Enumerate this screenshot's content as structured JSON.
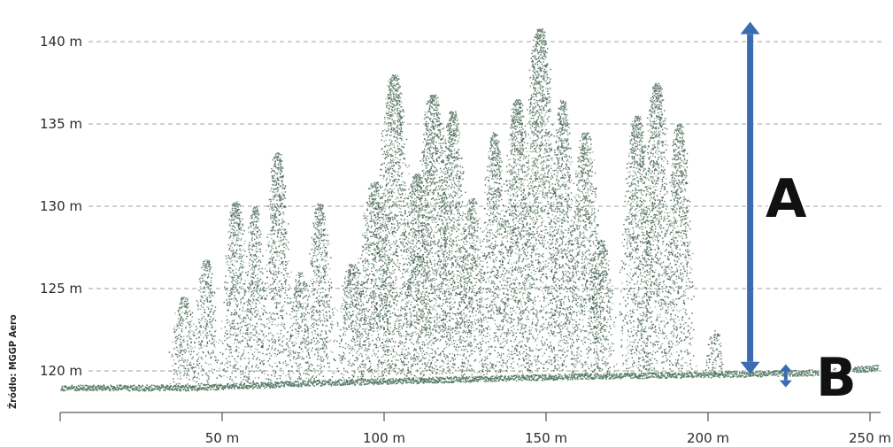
{
  "chart_data": {
    "type": "scatter",
    "title": "",
    "xlabel": "",
    "ylabel": "",
    "xlim": [
      0,
      252
    ],
    "ylim": [
      116,
      142
    ],
    "x_ticks": [
      0,
      50,
      100,
      150,
      200,
      250
    ],
    "x_tick_labels": [
      "",
      "50 m",
      "100 m",
      "150 m",
      "200 m",
      "250 m"
    ],
    "y_ticks": [
      120,
      125,
      130,
      135,
      140
    ],
    "y_tick_labels": [
      "120 m",
      "125 m",
      "130 m",
      "135 m",
      "140 m"
    ],
    "grid": "horizontal dashed",
    "source": "Źródło: MGGP Aero",
    "ground_profile": [
      [
        0,
        119.0
      ],
      [
        40,
        119.0
      ],
      [
        80,
        119.3
      ],
      [
        120,
        119.5
      ],
      [
        160,
        119.7
      ],
      [
        200,
        119.8
      ],
      [
        230,
        119.9
      ],
      [
        252,
        120.2
      ]
    ],
    "tree_crowns": [
      {
        "x": 38,
        "top": 124.5,
        "width": 6
      },
      {
        "x": 45,
        "top": 126.8,
        "width": 5
      },
      {
        "x": 54,
        "top": 130.3,
        "width": 6
      },
      {
        "x": 60,
        "top": 130.0,
        "width": 5
      },
      {
        "x": 67,
        "top": 133.3,
        "width": 6
      },
      {
        "x": 74,
        "top": 126.0,
        "width": 5
      },
      {
        "x": 80,
        "top": 130.2,
        "width": 6
      },
      {
        "x": 90,
        "top": 126.5,
        "width": 7
      },
      {
        "x": 97,
        "top": 131.5,
        "width": 8
      },
      {
        "x": 103,
        "top": 138.0,
        "width": 8
      },
      {
        "x": 110,
        "top": 132.0,
        "width": 7
      },
      {
        "x": 115,
        "top": 136.8,
        "width": 8
      },
      {
        "x": 121,
        "top": 135.8,
        "width": 7
      },
      {
        "x": 127,
        "top": 130.5,
        "width": 6
      },
      {
        "x": 134,
        "top": 134.5,
        "width": 6
      },
      {
        "x": 141,
        "top": 136.5,
        "width": 7
      },
      {
        "x": 148,
        "top": 140.8,
        "width": 8
      },
      {
        "x": 155,
        "top": 136.5,
        "width": 6
      },
      {
        "x": 162,
        "top": 134.5,
        "width": 7
      },
      {
        "x": 167,
        "top": 128.0,
        "width": 6
      },
      {
        "x": 178,
        "top": 135.5,
        "width": 7
      },
      {
        "x": 184,
        "top": 137.5,
        "width": 7
      },
      {
        "x": 191,
        "top": 135.0,
        "width": 6
      },
      {
        "x": 202,
        "top": 122.5,
        "width": 4
      }
    ],
    "annotations": [
      {
        "label": "A",
        "from": 119.8,
        "to": 141.2,
        "x": 213
      },
      {
        "label": "B",
        "from": 119.0,
        "to": 120.4,
        "x": 224
      }
    ],
    "colors": {
      "arrow": "#3b6cb3",
      "points_dark": "#1f3a32",
      "points_light": "#7aa183",
      "ground": "#3f6a52",
      "grid": "#aeb9b0"
    }
  }
}
